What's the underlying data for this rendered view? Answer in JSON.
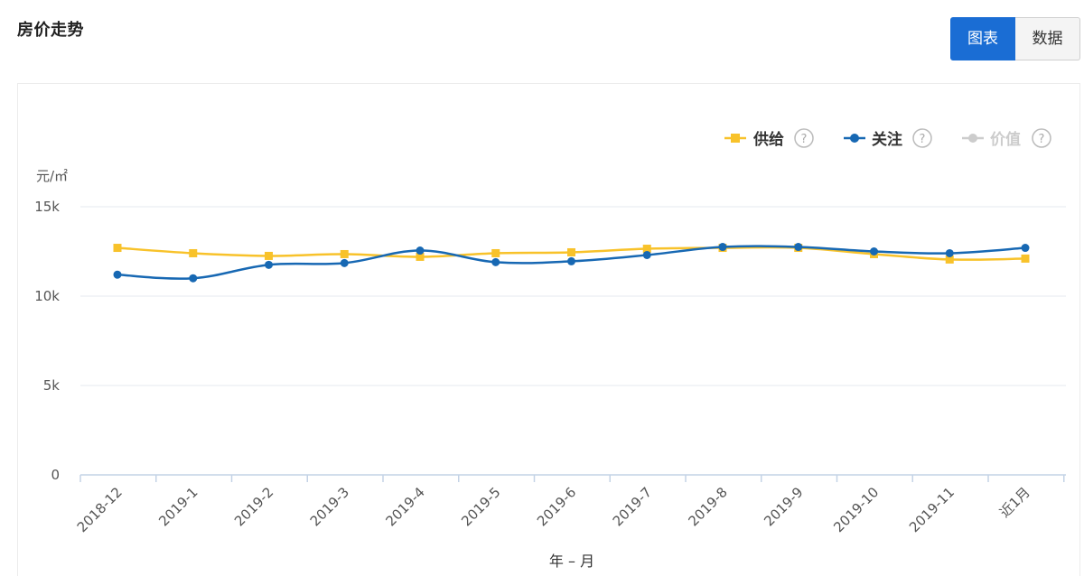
{
  "header": {
    "title": "房价走势"
  },
  "view_toggle": {
    "chart_label": "图表",
    "data_label": "数据",
    "selected": "图表"
  },
  "colors": {
    "supply": "#f8c22a",
    "attention": "#1768b3",
    "value": "#cccccc",
    "grid": "#e4e8ef",
    "axis": "#c4d3e6",
    "tick_text": "#555555",
    "primary": "#1a6dd4"
  },
  "legend": {
    "items": [
      {
        "name": "供给",
        "help": "?",
        "active": true
      },
      {
        "name": "关注",
        "help": "?",
        "active": true
      },
      {
        "name": "价值",
        "help": "?",
        "active": false
      }
    ]
  },
  "chart_data": {
    "type": "line",
    "ylabel": "元/㎡",
    "xlabel": "年 – 月",
    "ylim": [
      0,
      15000
    ],
    "yticks": [
      0,
      5000,
      10000,
      15000
    ],
    "ytick_labels": [
      "0",
      "5k",
      "10k",
      "15k"
    ],
    "grid": true,
    "legend_position": "top-right",
    "categories": [
      "2018-12",
      "2019-1",
      "2019-2",
      "2019-3",
      "2019-4",
      "2019-5",
      "2019-6",
      "2019-7",
      "2019-8",
      "2019-9",
      "2019-10",
      "2019-11",
      "近1月"
    ],
    "series": [
      {
        "name": "供给",
        "marker": "square",
        "values": [
          12700,
          12400,
          12250,
          12350,
          12200,
          12400,
          12450,
          12650,
          12700,
          12700,
          12350,
          12050,
          12100
        ]
      },
      {
        "name": "关注",
        "marker": "circle",
        "values": [
          11200,
          11000,
          11750,
          11850,
          12550,
          11900,
          11950,
          12300,
          12750,
          12750,
          12500,
          12400,
          12700
        ]
      }
    ]
  }
}
